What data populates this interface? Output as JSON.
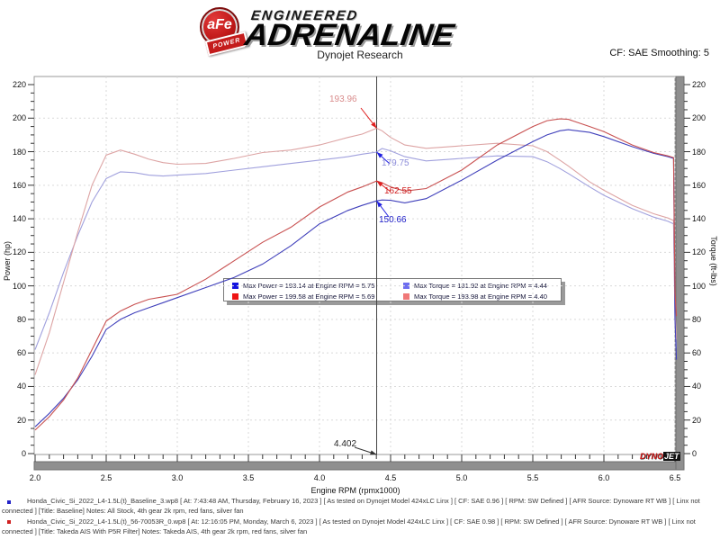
{
  "header": {
    "brand_circle": "aFe",
    "brand_tm": "TM",
    "brand_badge": "POWER",
    "brand_line1": "ENGINEERED",
    "brand_line2": "ADRENALINE",
    "subtitle": "Dynojet Research",
    "correction": "CF: SAE Smoothing: 5"
  },
  "chart_data": {
    "type": "line",
    "xlabel": "Engine RPM (rpmx1000)",
    "ylabel_left": "Power (hp)",
    "ylabel_right": "Torque (ft-lbs)",
    "xlim": [
      2.0,
      6.5
    ],
    "ylim": [
      0,
      220
    ],
    "x_ticks": [
      2.0,
      2.5,
      3.0,
      3.5,
      4.0,
      4.5,
      5.0,
      5.5,
      6.0,
      6.5
    ],
    "y_ticks": [
      0,
      20,
      40,
      60,
      80,
      100,
      120,
      140,
      160,
      180,
      200,
      220
    ],
    "grid": true,
    "cursor_rpm": 4.402,
    "x": [
      2.0,
      2.1,
      2.2,
      2.3,
      2.4,
      2.5,
      2.6,
      2.7,
      2.8,
      2.9,
      3.0,
      3.2,
      3.4,
      3.6,
      3.8,
      4.0,
      4.2,
      4.3,
      4.402,
      4.44,
      4.5,
      4.6,
      4.75,
      5.0,
      5.25,
      5.5,
      5.6,
      5.69,
      5.75,
      5.9,
      6.0,
      6.2,
      6.35,
      6.45,
      6.49,
      6.5,
      6.51
    ],
    "series": [
      {
        "name": "power_baseline",
        "color": "#4040bb",
        "values": [
          16,
          24,
          33,
          44,
          58,
          74,
          80,
          84,
          87,
          90,
          93,
          99,
          105,
          113,
          124,
          137,
          145,
          148,
          150.66,
          151.2,
          151,
          149.5,
          152,
          163,
          175,
          186,
          190,
          192.5,
          193.14,
          191.5,
          189,
          183,
          179,
          177,
          176,
          80,
          56
        ]
      },
      {
        "name": "power_takeda",
        "color": "#c85050",
        "values": [
          14,
          22,
          32,
          45,
          62,
          79,
          85,
          89,
          92,
          93.5,
          95,
          104,
          115,
          126,
          135,
          147,
          156,
          159,
          162.55,
          161.5,
          159,
          156.5,
          158,
          169,
          184,
          195,
          198.5,
          199.58,
          199.3,
          195,
          192,
          184,
          179.5,
          177.5,
          176.5,
          96,
          82
        ]
      },
      {
        "name": "torque_baseline",
        "color": "#a0a0dd",
        "values": [
          62,
          84,
          108,
          130,
          150,
          164,
          168,
          167.5,
          166,
          165.5,
          166,
          167,
          169,
          171,
          173,
          175,
          177,
          178.5,
          179.75,
          181.92,
          180.5,
          177,
          174.5,
          176,
          177.5,
          177,
          174,
          170,
          167,
          159,
          154,
          146,
          141,
          138.5,
          137,
          80,
          63
        ]
      },
      {
        "name": "torque_takeda",
        "color": "#dda4a4",
        "values": [
          47,
          72,
          102,
          132,
          160,
          178,
          181,
          178.5,
          175.5,
          173.5,
          172.5,
          173,
          176,
          179.5,
          181,
          184,
          188.5,
          190.5,
          193.96,
          192.5,
          188.5,
          184,
          182,
          183.5,
          185,
          183.5,
          180,
          175,
          171.5,
          162,
          157,
          148,
          143,
          140.5,
          139,
          85,
          68
        ]
      }
    ],
    "annotations": [
      {
        "label": "193.96",
        "value": 193.96,
        "color": "#d98c8c",
        "arrow": "#e02020",
        "axis": false
      },
      {
        "label": "179.75",
        "value": 179.75,
        "color": "#8c8cd9",
        "arrow": "#2020e0",
        "axis": false
      },
      {
        "label": "162.55",
        "value": 162.55,
        "color": "#d02020",
        "arrow": "#e02020",
        "axis": false
      },
      {
        "label": "150.66",
        "value": 150.66,
        "color": "#2020c8",
        "arrow": "#2020e0",
        "axis": false
      },
      {
        "label": "4.402",
        "value": 4.402,
        "color": "#222222",
        "arrow": "#333333",
        "axis": true
      }
    ],
    "legend": {
      "entries": [
        {
          "label": "Max Power = 193.14 at Engine RPM = 5.75",
          "color": "#1414e0"
        },
        {
          "label": "Max Torque = 181.92 at Engine RPM = 4.44",
          "color": "#6e6ef0"
        },
        {
          "label": "Max Power = 199.58 at Engine RPM = 5.69",
          "color": "#ee1414"
        },
        {
          "label": "Max Torque = 193.98 at Engine RPM = 4.40",
          "color": "#f07878"
        }
      ]
    }
  },
  "watermark": {
    "part1": "DYNO",
    "part2": "JET"
  },
  "footer": {
    "lines": [
      {
        "bullet": "#2424c8",
        "text": "Honda_Civic_Si_2022_L4-1.5L(t)_Baseline_3.wp8 [ At: 7:43:48 AM, Thursday, February 16, 2023 ] [ As tested on Dynojet Model 424xLC Linx ] [ CF: SAE 0.96 ] [ RPM: SW Defined ] [ AFR Source: Dynoware RT WB ] [ Linx not"
      },
      {
        "bullet": "",
        "text": "connected ] [Title: Baseline]  Notes: All Stock, 4th gear 2k rpm, red fans, silver fan"
      },
      {
        "bullet": "#d02020",
        "text": "Honda_Civic_Si_2022_L4-1.5L(t)_56-70053R_0.wp8 [ At: 12:16:05 PM, Monday, March 6, 2023 ] [ As tested on Dynojet Model 424xLC Linx ] [ CF: SAE 0.98 ] [ RPM: SW Defined ] [ AFR Source: Dynoware RT WB ] [ Linx not"
      },
      {
        "bullet": "",
        "text": "connected ] [Title: Takeda AIS With P5R Filter]  Notes: Takeda AIS, 4th gear 2k rpm, red fans, silver fan"
      }
    ]
  }
}
